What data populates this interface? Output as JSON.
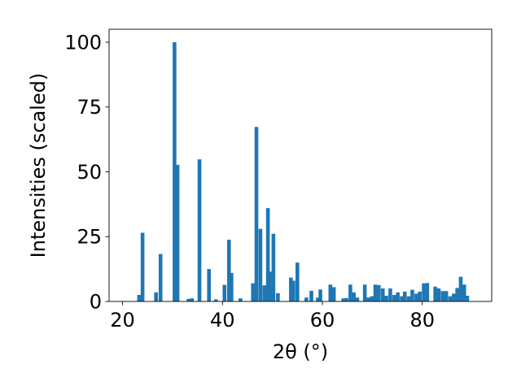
{
  "chart_data": {
    "type": "bar",
    "xlabel": "2θ (°)",
    "ylabel": "Intensities (scaled)",
    "xlim": [
      17.3,
      93.9
    ],
    "ylim": [
      0,
      105
    ],
    "xticks": [
      20,
      40,
      60,
      80
    ],
    "yticks": [
      0,
      25,
      50,
      75,
      100
    ],
    "bar_width": 0.75,
    "bar_color": "#1f77b4",
    "grid": false,
    "bars": [
      {
        "x": 23.3,
        "y": 2.5
      },
      {
        "x": 24.0,
        "y": 26.5
      },
      {
        "x": 26.7,
        "y": 3.5
      },
      {
        "x": 27.6,
        "y": 18.3
      },
      {
        "x": 30.4,
        "y": 100
      },
      {
        "x": 31.0,
        "y": 52.7
      },
      {
        "x": 33.2,
        "y": 1.0
      },
      {
        "x": 33.9,
        "y": 1.2
      },
      {
        "x": 35.4,
        "y": 54.8
      },
      {
        "x": 37.3,
        "y": 12.5
      },
      {
        "x": 38.7,
        "y": 0.8
      },
      {
        "x": 40.4,
        "y": 6.4
      },
      {
        "x": 41.3,
        "y": 23.8
      },
      {
        "x": 41.8,
        "y": 11.0
      },
      {
        "x": 43.6,
        "y": 1.2
      },
      {
        "x": 46.1,
        "y": 7.0
      },
      {
        "x": 46.8,
        "y": 67.3
      },
      {
        "x": 47.6,
        "y": 28.0
      },
      {
        "x": 48.4,
        "y": 6.2
      },
      {
        "x": 49.1,
        "y": 36.0
      },
      {
        "x": 49.5,
        "y": 11.5
      },
      {
        "x": 50.2,
        "y": 26.1
      },
      {
        "x": 51.1,
        "y": 3.2
      },
      {
        "x": 53.7,
        "y": 9.2
      },
      {
        "x": 54.2,
        "y": 8.0
      },
      {
        "x": 55.0,
        "y": 15.0
      },
      {
        "x": 56.8,
        "y": 1.5
      },
      {
        "x": 57.8,
        "y": 4.1
      },
      {
        "x": 59.1,
        "y": 1.5
      },
      {
        "x": 59.6,
        "y": 4.6
      },
      {
        "x": 61.6,
        "y": 6.5
      },
      {
        "x": 62.3,
        "y": 5.5
      },
      {
        "x": 64.2,
        "y": 1.2
      },
      {
        "x": 64.8,
        "y": 1.3
      },
      {
        "x": 65.6,
        "y": 6.5
      },
      {
        "x": 66.3,
        "y": 3.5
      },
      {
        "x": 67.0,
        "y": 1.5
      },
      {
        "x": 68.5,
        "y": 6.5
      },
      {
        "x": 69.2,
        "y": 1.5
      },
      {
        "x": 69.9,
        "y": 2.0
      },
      {
        "x": 70.6,
        "y": 6.5
      },
      {
        "x": 71.3,
        "y": 6.3
      },
      {
        "x": 72.1,
        "y": 5.0
      },
      {
        "x": 72.8,
        "y": 2.2
      },
      {
        "x": 73.6,
        "y": 5.0
      },
      {
        "x": 74.4,
        "y": 2.5
      },
      {
        "x": 75.1,
        "y": 3.5
      },
      {
        "x": 75.9,
        "y": 2.0
      },
      {
        "x": 76.5,
        "y": 3.8
      },
      {
        "x": 77.3,
        "y": 2.0
      },
      {
        "x": 78.0,
        "y": 4.5
      },
      {
        "x": 78.8,
        "y": 3.0
      },
      {
        "x": 79.5,
        "y": 3.8
      },
      {
        "x": 80.3,
        "y": 7.0
      },
      {
        "x": 81.0,
        "y": 7.1
      },
      {
        "x": 82.6,
        "y": 5.7
      },
      {
        "x": 83.3,
        "y": 5.0
      },
      {
        "x": 84.1,
        "y": 4.0
      },
      {
        "x": 84.8,
        "y": 4.0
      },
      {
        "x": 85.6,
        "y": 2.0
      },
      {
        "x": 86.3,
        "y": 3.0
      },
      {
        "x": 87.0,
        "y": 5.2
      },
      {
        "x": 87.7,
        "y": 9.5
      },
      {
        "x": 88.4,
        "y": 6.5
      },
      {
        "x": 89.0,
        "y": 2.2
      }
    ]
  }
}
